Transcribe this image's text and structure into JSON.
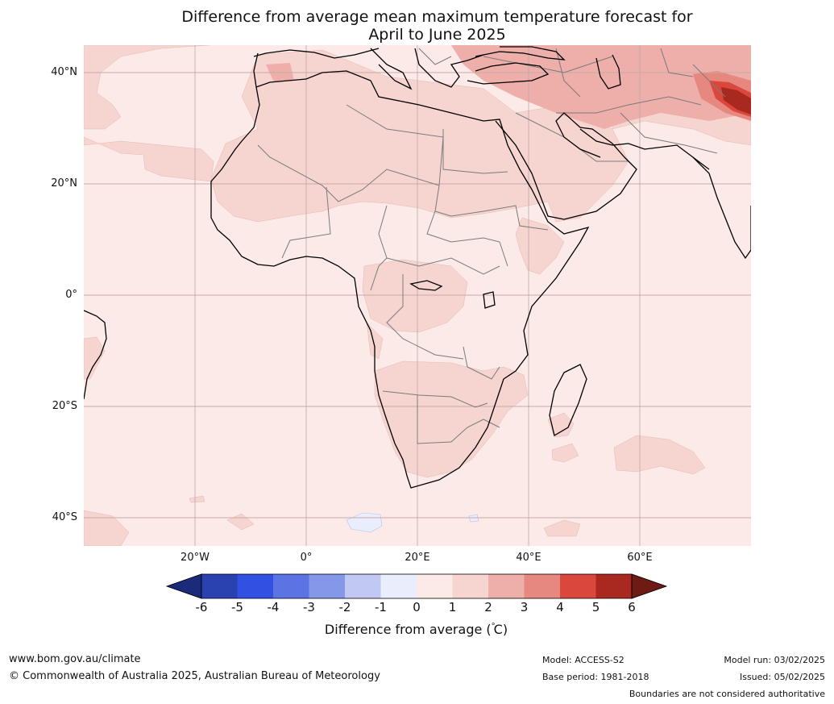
{
  "title": {
    "line1": "Difference from average mean maximum temperature forecast for",
    "line2": "April to June 2025"
  },
  "map": {
    "lat_labels": [
      "40°N",
      "20°N",
      "0°",
      "20°S",
      "40°S"
    ],
    "lon_labels": [
      "20°W",
      "0°",
      "20°E",
      "40°E",
      "60°E"
    ],
    "colors": {
      "ocean_default": "#fbeae7",
      "anom_1_2": "#f6d4d0",
      "anom_2_3": "#eeaeaa",
      "anom_3_4": "#e78880",
      "anom_4_5": "#d9473d",
      "anom_5_6": "#a9281f",
      "anom_neg": "#eaedfb",
      "grid": "#c9a9a8",
      "coast": "#000000",
      "border": "#7b7b7b"
    }
  },
  "colorbar": {
    "ticks": [
      "-6",
      "-5",
      "-4",
      "-3",
      "-2",
      "-1",
      "0",
      "1",
      "2",
      "3",
      "4",
      "5",
      "6"
    ],
    "colors": [
      "#1b2a7a",
      "#2a41b0",
      "#3250e2",
      "#5c74e3",
      "#8597e8",
      "#c1c8f4",
      "#eaedfb",
      "#fbeae7",
      "#f6d4d0",
      "#eeaeaa",
      "#e78880",
      "#d9473d",
      "#a9281f",
      "#6e1a15"
    ],
    "label": "Difference from average ($^\\circ$C)",
    "label_text": "Difference from average (",
    "label_degree": "°",
    "label_unit": "C)"
  },
  "footer": {
    "website": "www.bom.gov.au/climate",
    "copyright": "© Commonwealth of Australia 2025, Australian Bureau of Meteorology",
    "model": "Model: ACCESS-S2",
    "base_period": "Base period: 1981-2018",
    "model_run": "Model run: 03/02/2025",
    "issued": "Issued: 05/02/2025",
    "disclaimer": "Boundaries are not considered authoritative"
  }
}
